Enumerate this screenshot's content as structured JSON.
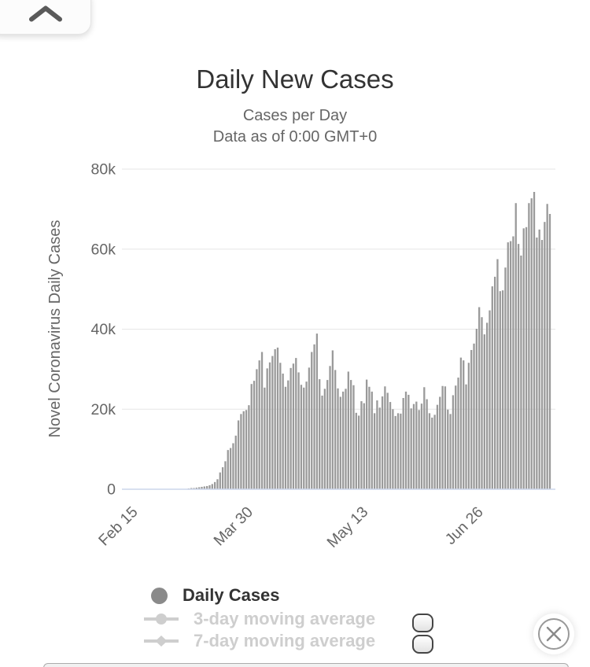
{
  "panel_button": {
    "icon": "chevron-up"
  },
  "chart": {
    "title": "Daily New Cases",
    "subtitle_line1": "Cases per Day",
    "subtitle_line2": "Data as of 0:00 GMT+0"
  },
  "chart_data": {
    "type": "bar",
    "title": "Daily New Cases",
    "subtitle": [
      "Cases per Day",
      "Data as of 0:00 GMT+0"
    ],
    "ylabel": "Novel Coronavirus Daily Cases",
    "xlabel": "",
    "ylim": [
      0,
      80000
    ],
    "grid": true,
    "legend_position": "bottom-left",
    "y_ticks": [
      {
        "label": "0",
        "value": 0
      },
      {
        "label": "20k",
        "value": 20000
      },
      {
        "label": "40k",
        "value": 40000
      },
      {
        "label": "60k",
        "value": 60000
      },
      {
        "label": "80k",
        "value": 80000
      }
    ],
    "x_ticks": [
      {
        "label": "Feb 15",
        "day": 0
      },
      {
        "label": "Mar 30",
        "day": 44
      },
      {
        "label": "May 13",
        "day": 88
      },
      {
        "label": "Jun 26",
        "day": 132
      }
    ],
    "values_unit": "daily new cases, thousands (one bar per day starting Feb 15)",
    "values_thousands": [
      0.05,
      0.05,
      0.05,
      0.05,
      0.05,
      0.05,
      0.05,
      0.05,
      0.05,
      0.05,
      0.05,
      0.05,
      0.05,
      0.05,
      0.05,
      0.1,
      0.1,
      0.1,
      0.1,
      0.1,
      0.1,
      0.2,
      0.3,
      0.3,
      0.4,
      0.5,
      0.6,
      0.7,
      0.8,
      1.0,
      1.3,
      1.8,
      2.5,
      4.2,
      5.5,
      7.0,
      9.8,
      10.3,
      11.5,
      13.4,
      17.2,
      18.8,
      19.5,
      19.8,
      21.0,
      26.3,
      27.1,
      30.0,
      32.2,
      34.3,
      25.4,
      30.2,
      31.7,
      33.3,
      35.0,
      35.4,
      31.6,
      28.9,
      25.6,
      27.2,
      30.3,
      31.4,
      32.8,
      29.2,
      26.1,
      25.4,
      26.9,
      30.4,
      34.3,
      36.2,
      38.9,
      27.5,
      23.4,
      25.1,
      27.3,
      30.8,
      34.7,
      29.8,
      25.2,
      23.1,
      24.4,
      25.1,
      29.4,
      27.3,
      26.0,
      19.1,
      18.4,
      22.0,
      21.5,
      27.4,
      25.6,
      24.4,
      19.0,
      22.2,
      20.4,
      23.2,
      25.7,
      24.1,
      21.8,
      20.0,
      18.3,
      19.0,
      18.9,
      22.8,
      24.4,
      23.6,
      20.2,
      21.3,
      21.9,
      19.8,
      21.4,
      25.5,
      22.5,
      19.0,
      17.9,
      18.6,
      21.1,
      23.1,
      25.8,
      25.7,
      19.9,
      18.8,
      23.5,
      25.9,
      27.9,
      32.9,
      32.2,
      26.2,
      31.6,
      34.8,
      36.4,
      40.1,
      45.5,
      43.0,
      38.7,
      41.6,
      44.7,
      50.7,
      53.1,
      57.5,
      49.5,
      49.7,
      55.4,
      61.7,
      62.0,
      63.2,
      71.5,
      61.3,
      58.4,
      65.2,
      65.5,
      71.5,
      72.7,
      74.3,
      62.9,
      64.9,
      62.3,
      66.8,
      71.3,
      68.8
    ]
  },
  "legend": {
    "items": [
      {
        "label": "Daily Cases",
        "enabled": true,
        "marker": "circle"
      },
      {
        "label": "3-day moving average",
        "enabled": false,
        "marker": "line-circle"
      },
      {
        "label": "7-day moving average",
        "enabled": false,
        "marker": "line-diamond"
      }
    ]
  },
  "colors": {
    "bar": "#9a9a9a",
    "grid": "#e6e6e6",
    "axis_line": "#ccd6eb",
    "tick_text": "#666666",
    "title_text": "#333333",
    "subtitle_text": "#666666",
    "legend_enabled_text": "#333333",
    "legend_disabled": "#cecece",
    "legend_marker": "#8a8a8a"
  }
}
